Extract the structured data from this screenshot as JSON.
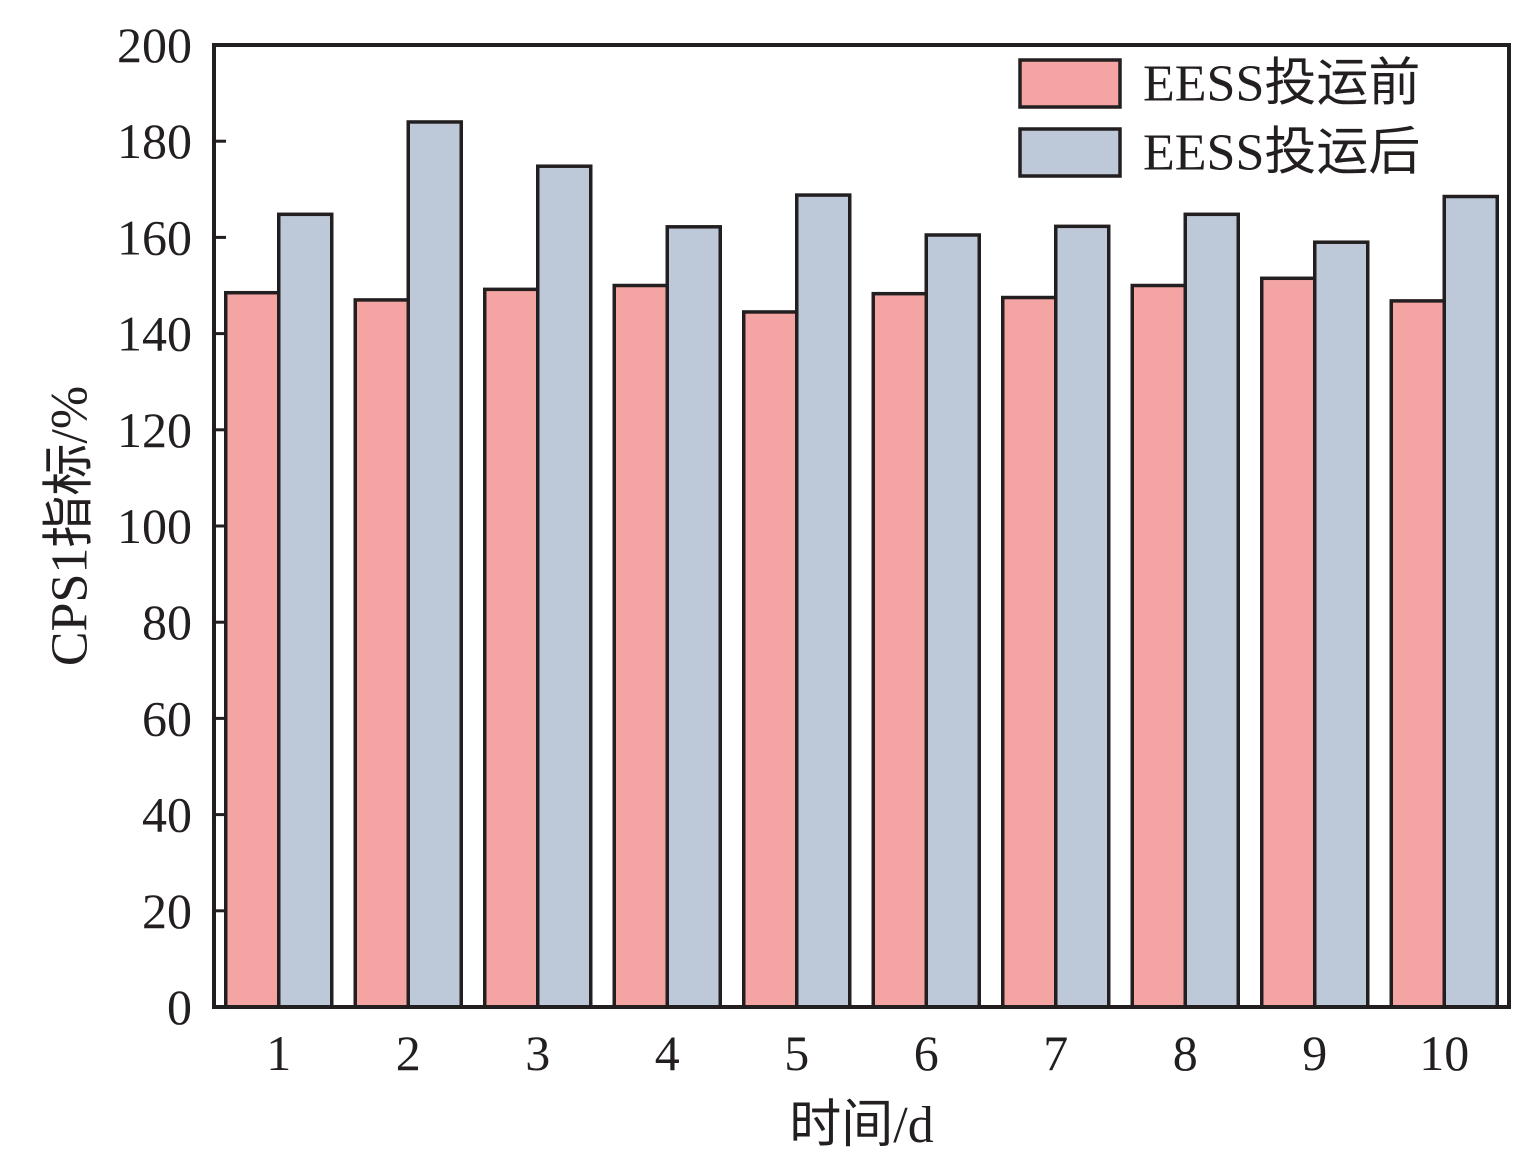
{
  "chart_data": {
    "type": "bar",
    "xlabel": "时间/d",
    "ylabel": "CPS1指标/%",
    "ylim": [
      0,
      200
    ],
    "yticks": [
      0,
      20,
      40,
      60,
      80,
      100,
      120,
      140,
      160,
      180,
      200
    ],
    "categories": [
      "1",
      "2",
      "3",
      "4",
      "5",
      "6",
      "7",
      "8",
      "9",
      "10"
    ],
    "series": [
      {
        "name": "EESS投运前",
        "color": "#f4a5a3",
        "values": [
          148.5,
          147,
          149.2,
          150,
          144.5,
          148.3,
          147.5,
          150,
          151.5,
          146.8
        ]
      },
      {
        "name": "EESS投运后",
        "color": "#bdc8d8",
        "values": [
          164.8,
          184,
          174.8,
          162.2,
          168.8,
          160.5,
          162.3,
          164.8,
          159,
          168.5
        ]
      }
    ],
    "legend": "top-right",
    "grid": false
  }
}
